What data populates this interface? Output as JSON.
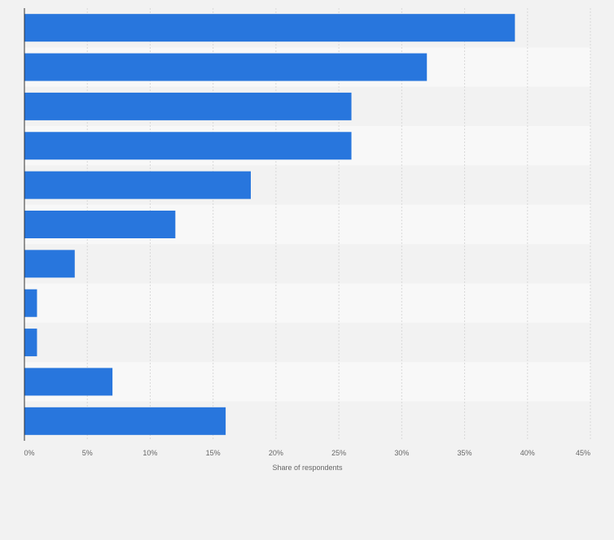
{
  "chart_data": {
    "type": "bar",
    "orientation": "horizontal",
    "categories": [
      "",
      "",
      "",
      "",
      "",
      "",
      "",
      "",
      "",
      "",
      ""
    ],
    "values": [
      39,
      32,
      26,
      26,
      18,
      12,
      4,
      1,
      1,
      7,
      16
    ],
    "xlabel": "Share of respondents",
    "ylabel": "",
    "xlim": [
      0,
      45
    ],
    "x_ticks": [
      "0%",
      "5%",
      "10%",
      "15%",
      "20%",
      "25%",
      "30%",
      "35%",
      "40%",
      "45%"
    ],
    "grid": true,
    "legend": "none"
  },
  "colors": {
    "bar": "#2876dd",
    "band_even": "#f2f2f2",
    "band_odd": "#f8f8f8",
    "background": "#f2f2f2",
    "gridline": "#d8d8d8",
    "axis": "#333333",
    "tick_label": "#666666"
  }
}
